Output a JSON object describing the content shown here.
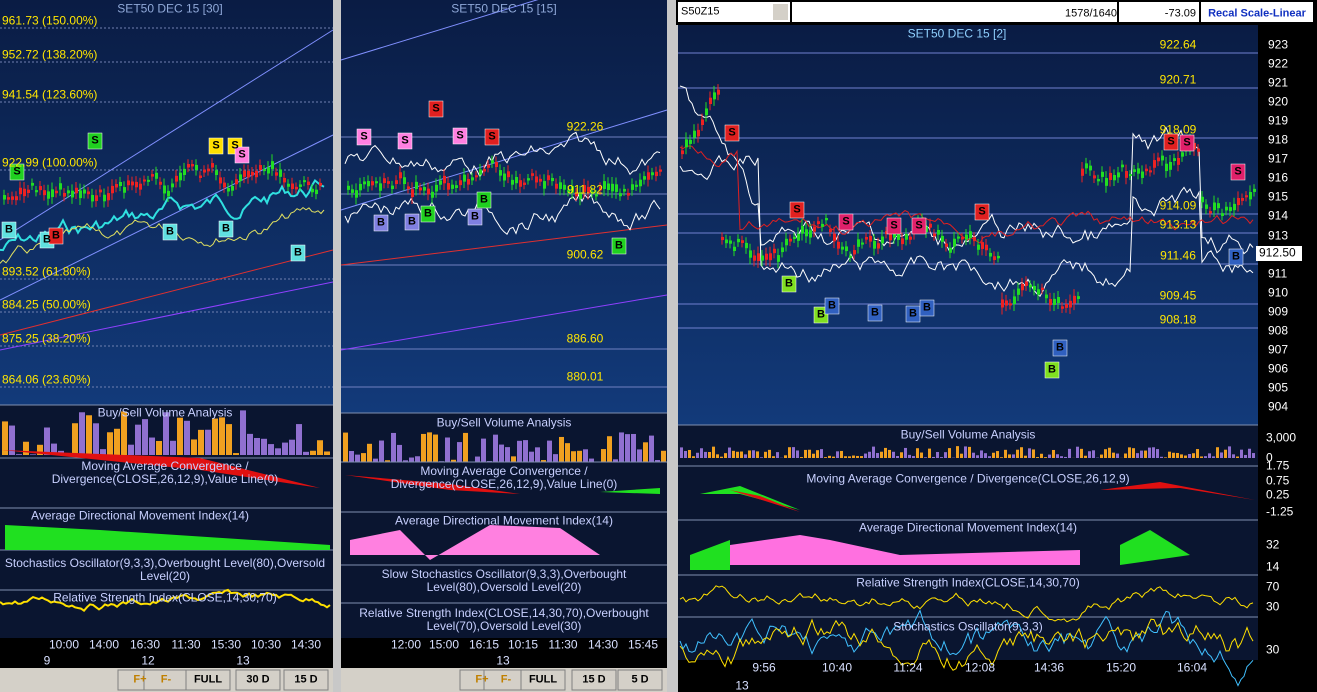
{
  "left_panel": {
    "title": "SET50 DEC 15  [30]",
    "fib_levels": [
      "961.73 (150.00%)",
      "952.72 (138.20%)",
      "941.54 (123.60%)",
      "922.99 (100.00%)",
      "893.52 (61.80%)",
      "884.25 (50.00%)",
      "875.25 (38.20%)",
      "864.06 (23.60%)"
    ],
    "signals": [
      "S",
      "S",
      "S",
      "S",
      "S",
      "B",
      "B",
      "B",
      "B",
      "B",
      "B"
    ],
    "indicators": [
      "Buy/Sell Volume Analysis",
      "Moving Average Convergence / Divergence(CLOSE,26,12,9),Value Line(0)",
      "Average Directional Movement Index(14)",
      "Stochastics Oscillator(9,3,3),Overbought Level(80),Oversold Level(20)",
      "Relative Strength Index(CLOSE,14,30,70)"
    ],
    "time_labels": [
      "10:00",
      "14:00",
      "16:30",
      "11:30",
      "15:30",
      "10:30",
      "14:30"
    ],
    "date_labels": [
      "9",
      "12",
      "13"
    ],
    "nav_buttons": [
      "F+",
      "F-",
      "FULL",
      "30 D",
      "15 D"
    ]
  },
  "middle_panel": {
    "title": "SET50 DEC 15   [15]",
    "levels": [
      "922.26",
      "911.82",
      "900.62",
      "886.60",
      "880.01"
    ],
    "signals": [
      "S",
      "S",
      "S",
      "S",
      "S",
      "B",
      "B",
      "B",
      "B",
      "B",
      "B"
    ],
    "indicators": [
      "Buy/Sell Volume Analysis",
      "Moving Average Convergence / Divergence(CLOSE,26,12,9),Value Line(0)",
      "Average Directional Movement Index(14)",
      "Slow Stochastics Oscillator(9,3,3),Overbought Level(80),Oversold Level(20)",
      "Relative Strength Index(CLOSE,14,30,70),Overbought Level(70),Oversold Level(30)"
    ],
    "time_labels": [
      "12:00",
      "15:00",
      "16:15",
      "10:15",
      "11:30",
      "14:30",
      "15:45"
    ],
    "date_labels": [
      "13"
    ],
    "nav_buttons": [
      "F+",
      "F-",
      "FULL",
      "15 D",
      "5 D"
    ]
  },
  "right_panel": {
    "symbol": "S50Z15",
    "counter": "1578/1640",
    "change": "-73.09",
    "scale_button": "Recal Scale-Linear",
    "title": "SET50 DEC 15   [2]",
    "levels": [
      "922.64",
      "920.71",
      "918.09",
      "914.09",
      "913.13",
      "911.46",
      "909.45",
      "908.18"
    ],
    "price_axis": [
      "923",
      "922",
      "921",
      "920",
      "919",
      "918",
      "917",
      "916",
      "915",
      "914",
      "913",
      "912",
      "911",
      "910",
      "909",
      "908",
      "907",
      "906",
      "905",
      "904"
    ],
    "last_price": "912.50",
    "signals": [
      "S",
      "S",
      "S",
      "S",
      "S",
      "S",
      "S",
      "S",
      "S",
      "B",
      "B",
      "B",
      "B",
      "B",
      "B",
      "B",
      "B",
      "B"
    ],
    "indicators": [
      "Buy/Sell Volume Analysis",
      "Moving Average Convergence / Divergence(CLOSE,26,12,9)",
      "Average Directional Movement Index(14)",
      "Relative Strength Index(CLOSE,14,30,70)",
      "Stochastics Oscillator(9,3,3)"
    ],
    "volume_axis": [
      "3,000",
      "0"
    ],
    "macd_axis": [
      "1.75",
      "0.75",
      "0.25",
      "-1.25"
    ],
    "adx_axis": [
      "32",
      "14"
    ],
    "rsi_axis": [
      "70",
      "30"
    ],
    "stoch_axis": [
      "30"
    ],
    "time_labels": [
      "9:56",
      "10:40",
      "11:24",
      "12:08",
      "14:36",
      "15:20",
      "16:04"
    ],
    "date_labels": [
      "13"
    ]
  }
}
